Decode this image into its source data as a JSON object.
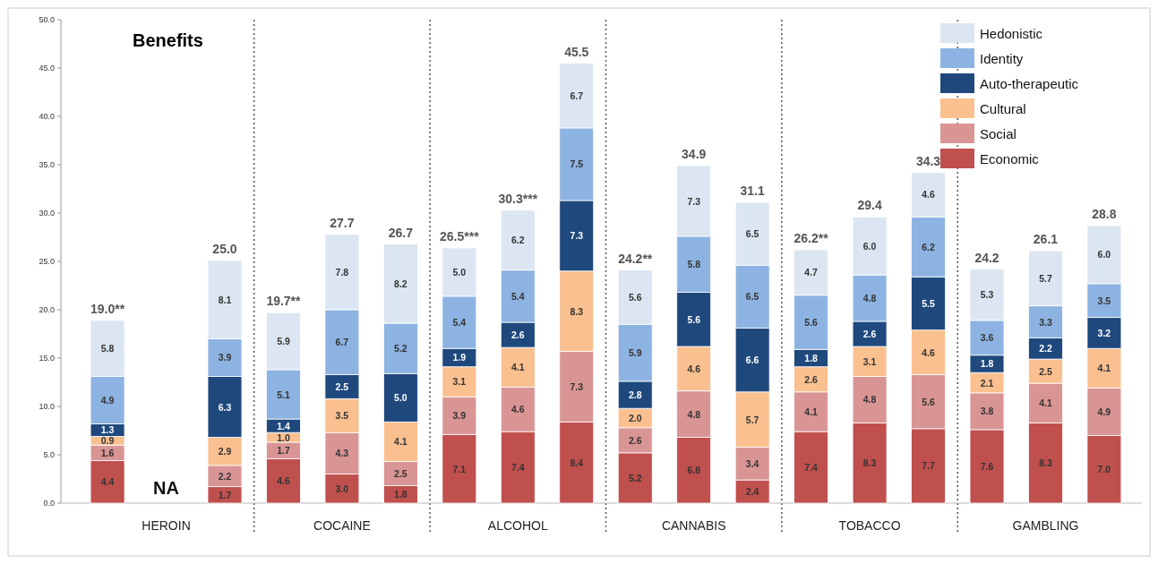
{
  "chart_data": {
    "type": "bar",
    "title": "Benefits",
    "stacked": true,
    "legend": "top right",
    "grid": false,
    "categories": [
      null,
      "HEROIN",
      null,
      null,
      "COCAINE",
      null,
      null,
      "ALCOHOL",
      null,
      null,
      "CANNABIS",
      null,
      null,
      "TOBACCO",
      null,
      null,
      "GAMBLING",
      null
    ],
    "ylim": [
      0,
      50
    ],
    "yticks": [
      {
        "value": 0,
        "label": "0.0"
      },
      {
        "value": 5,
        "label": "5.0"
      },
      {
        "value": 10,
        "label": "10.0"
      },
      {
        "value": 15,
        "label": "15.0"
      },
      {
        "value": 20,
        "label": "20.0"
      },
      {
        "value": 25,
        "label": "25.0"
      },
      {
        "value": 30,
        "label": "30.0"
      },
      {
        "value": 35,
        "label": "35.0"
      },
      {
        "value": 40,
        "label": "40.0"
      },
      {
        "value": 45,
        "label": "45.0"
      },
      {
        "value": 50,
        "label": "50.0"
      }
    ],
    "series": [
      {
        "name": "Economic",
        "color": "#c0504d",
        "values": [
          4.4,
          null,
          1.7,
          4.6,
          3.0,
          1.8,
          7.1,
          7.4,
          8.4,
          5.2,
          6.8,
          2.4,
          7.4,
          8.3,
          7.7,
          7.6,
          8.3,
          7.0
        ],
        "value_labels": [
          "4.4",
          null,
          "1.7",
          "4.6",
          "3.0",
          "1.8",
          "7.1",
          "7.4",
          "8.4",
          "5.2",
          "6.8",
          "2.4",
          "7.4",
          "8.3",
          "7.7",
          "7.6",
          "8.3",
          "7.0"
        ]
      },
      {
        "name": "Social",
        "color": "#d99594",
        "values": [
          1.6,
          null,
          2.2,
          1.7,
          4.3,
          2.5,
          3.9,
          4.6,
          7.3,
          2.6,
          4.8,
          3.4,
          4.1,
          4.8,
          5.6,
          3.8,
          4.1,
          4.9
        ],
        "value_labels": [
          "1.6",
          null,
          "2.2",
          "1.7",
          "4.3",
          "2.5",
          "3.9",
          "4.6",
          "7.3",
          "2.6",
          "4.8",
          "3.4",
          "4.1",
          "4.8",
          "5.6",
          "3.8",
          "4.1",
          "4.9"
        ]
      },
      {
        "name": "Cultural",
        "color": "#fac090",
        "values": [
          0.9,
          null,
          2.9,
          1.0,
          3.5,
          4.1,
          3.1,
          4.1,
          8.3,
          2.0,
          4.6,
          5.7,
          2.6,
          3.1,
          4.6,
          2.1,
          2.5,
          4.1
        ],
        "value_labels": [
          "0.9",
          null,
          "2.9",
          "1.0",
          "3.5",
          "4.1",
          "3.1",
          "4.1",
          "8.3",
          "2.0",
          "4.6",
          "5.7",
          "2.6",
          "3.1",
          "4.6",
          "2.1",
          "2.5",
          "4.1"
        ]
      },
      {
        "name": "Auto-therapeutic",
        "color": "#1f497d",
        "values": [
          1.3,
          null,
          6.3,
          1.4,
          2.5,
          5.0,
          1.9,
          2.6,
          7.3,
          2.8,
          5.6,
          6.6,
          1.8,
          2.6,
          5.5,
          1.8,
          2.2,
          3.2
        ],
        "value_labels": [
          "1.3",
          null,
          "6.3",
          "1.4",
          "2.5",
          "5.0",
          "1.9",
          "2.6",
          "7.3",
          "2.8",
          "5.6",
          "6.6",
          "1.8",
          "2.6",
          "5.5",
          "1.8",
          "2.2",
          "3.2"
        ]
      },
      {
        "name": "Identity",
        "color": "#8db3e2",
        "values": [
          4.9,
          null,
          3.9,
          5.1,
          6.7,
          5.2,
          5.4,
          5.4,
          7.5,
          5.9,
          5.8,
          6.5,
          5.6,
          4.8,
          6.2,
          3.6,
          3.3,
          3.5
        ],
        "value_labels": [
          "4.9",
          null,
          "3.9",
          "5.1",
          "6.7",
          "5.2",
          "5.4",
          "5.4",
          "7.5",
          "5.9",
          "5.8",
          "6.5",
          "5.6",
          "4.8",
          "6.2",
          "3.6",
          "3.3",
          "3.5"
        ]
      },
      {
        "name": "Hedonistic",
        "color": "#dce6f2",
        "values": [
          5.8,
          null,
          8.1,
          5.9,
          7.8,
          8.2,
          5.0,
          6.2,
          6.7,
          5.6,
          7.3,
          6.5,
          4.7,
          6.0,
          4.6,
          5.3,
          5.7,
          6.0
        ],
        "value_labels": [
          "5.8",
          null,
          "8.1",
          "5.9",
          "7.8",
          "8.2",
          "5.0",
          "6.2",
          "6.7",
          "5.6",
          "7.3",
          "6.5",
          "4.7",
          "6.0",
          "4.6",
          "5.3",
          "5.7",
          "6.0"
        ]
      }
    ],
    "totals": [
      "19.0**",
      "NA",
      "25.0",
      "19.7**",
      "27.7",
      "26.7",
      "26.5***",
      "30.3***",
      "45.5",
      "24.2**",
      "34.9",
      "31.1",
      "26.2**",
      "29.4",
      "34.3",
      "24.2",
      "26.1",
      "28.8"
    ]
  }
}
